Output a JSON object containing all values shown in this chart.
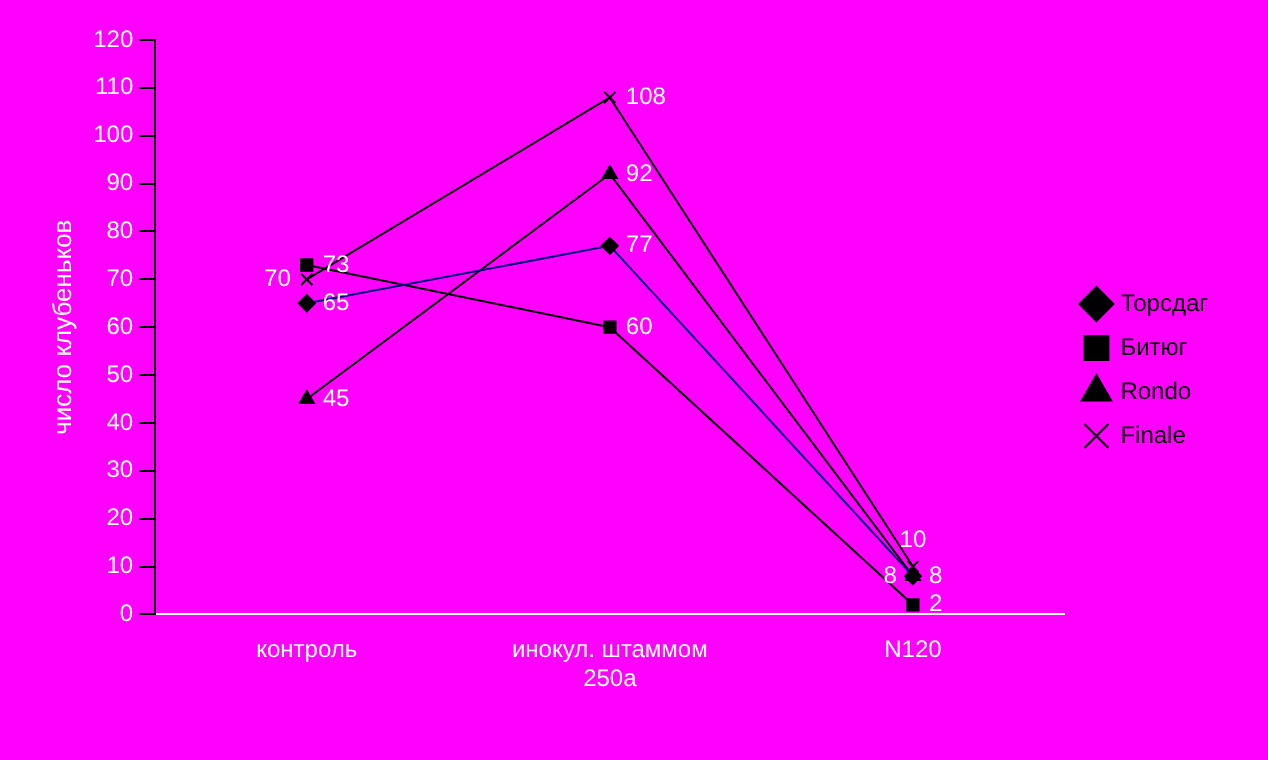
{
  "chart_data": {
    "type": "line",
    "ylabel": "число клубеньков",
    "categories": [
      "контроль",
      "инокул. штаммом 250а",
      "N120"
    ],
    "series": [
      {
        "name": "Торсдаг",
        "color": "#000080",
        "marker": "diamond",
        "values": [
          65,
          77,
          8
        ]
      },
      {
        "name": "Битюг",
        "color": "#000000",
        "marker": "square",
        "values": [
          73,
          60,
          2
        ]
      },
      {
        "name": "Rondo",
        "color": "#000000",
        "marker": "triangle",
        "values": [
          45,
          92,
          8
        ]
      },
      {
        "name": "Finale",
        "color": "#000000",
        "marker": "cross",
        "values": [
          70,
          108,
          10
        ]
      }
    ],
    "ylim": [
      0,
      120
    ],
    "yticks": [
      0,
      10,
      20,
      30,
      40,
      50,
      60,
      70,
      80,
      90,
      100,
      110,
      120
    ],
    "grid": false,
    "legend": "right",
    "data_labels": true
  }
}
